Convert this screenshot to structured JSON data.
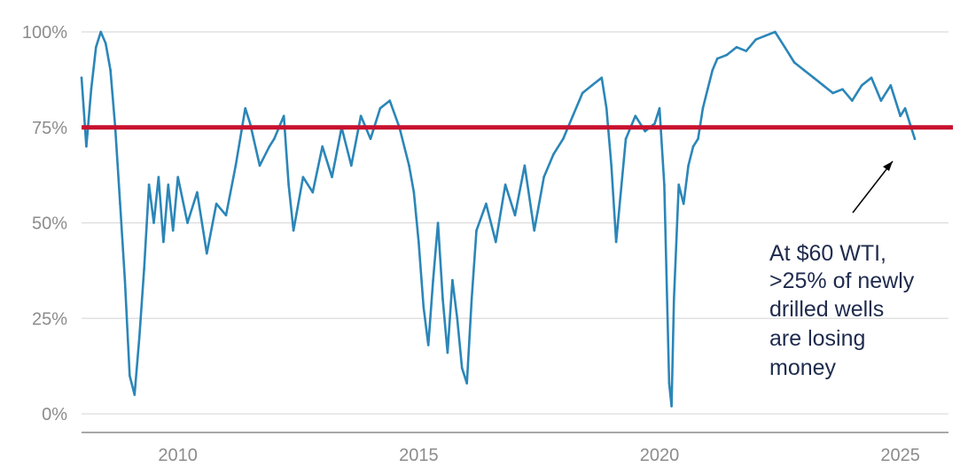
{
  "chart_data": {
    "type": "line",
    "title": "",
    "xlabel": "",
    "ylabel": "",
    "xlim": [
      2008.0,
      2026.0
    ],
    "ylim": [
      0,
      100
    ],
    "x_ticks": [
      {
        "value": 2010,
        "label": "2010"
      },
      {
        "value": 2015,
        "label": "2015"
      },
      {
        "value": 2020,
        "label": "2020"
      },
      {
        "value": 2025,
        "label": "2025"
      }
    ],
    "y_ticks": [
      {
        "value": 0,
        "label": "0%"
      },
      {
        "value": 25,
        "label": "25%"
      },
      {
        "value": 50,
        "label": "50%"
      },
      {
        "value": 75,
        "label": "75%"
      },
      {
        "value": 100,
        "label": "100%"
      }
    ],
    "grid": "horizontal",
    "legend": "none",
    "colors": {
      "series": "#2b86b8",
      "threshold": "#c8102e",
      "grid": "#dcdcdc",
      "axis": "#8c8c8c",
      "annotation": "#1f2b4d"
    },
    "reference_line": {
      "y": 75
    },
    "series": [
      {
        "x": [
          2008.0,
          2008.1,
          2008.2,
          2008.3,
          2008.4,
          2008.5,
          2008.6,
          2008.7,
          2008.8,
          2008.9,
          2009.0,
          2009.1,
          2009.2,
          2009.3,
          2009.4,
          2009.5,
          2009.6,
          2009.7,
          2009.8,
          2009.9,
          2010.0,
          2010.2,
          2010.4,
          2010.6,
          2010.8,
          2011.0,
          2011.2,
          2011.4,
          2011.5,
          2011.7,
          2011.9,
          2012.0,
          2012.2,
          2012.3,
          2012.4,
          2012.6,
          2012.8,
          2013.0,
          2013.2,
          2013.4,
          2013.6,
          2013.8,
          2014.0,
          2014.2,
          2014.4,
          2014.6,
          2014.8,
          2014.9,
          2015.0,
          2015.1,
          2015.2,
          2015.3,
          2015.4,
          2015.5,
          2015.6,
          2015.7,
          2015.8,
          2015.9,
          2016.0,
          2016.1,
          2016.2,
          2016.4,
          2016.6,
          2016.8,
          2017.0,
          2017.2,
          2017.4,
          2017.6,
          2017.8,
          2018.0,
          2018.2,
          2018.4,
          2018.6,
          2018.8,
          2018.9,
          2019.0,
          2019.1,
          2019.3,
          2019.5,
          2019.7,
          2019.9,
          2020.0,
          2020.1,
          2020.2,
          2020.25,
          2020.3,
          2020.4,
          2020.5,
          2020.6,
          2020.7,
          2020.8,
          2020.9,
          2021.0,
          2021.1,
          2021.2,
          2021.4,
          2021.6,
          2021.8,
          2022.0,
          2022.2,
          2022.4,
          2022.6,
          2022.8,
          2023.0,
          2023.2,
          2023.4,
          2023.6,
          2023.8,
          2024.0,
          2024.2,
          2024.4,
          2024.6,
          2024.8,
          2025.0,
          2025.1,
          2025.2,
          2025.3
        ],
        "y": [
          88,
          70,
          85,
          96,
          100,
          97,
          90,
          75,
          55,
          35,
          10,
          5,
          20,
          38,
          60,
          50,
          62,
          45,
          60,
          48,
          62,
          50,
          58,
          42,
          55,
          52,
          65,
          80,
          76,
          65,
          70,
          72,
          78,
          60,
          48,
          62,
          58,
          70,
          62,
          75,
          65,
          78,
          72,
          80,
          82,
          75,
          65,
          58,
          45,
          28,
          18,
          35,
          50,
          30,
          16,
          35,
          25,
          12,
          8,
          30,
          48,
          55,
          45,
          60,
          52,
          65,
          48,
          62,
          68,
          72,
          78,
          84,
          86,
          88,
          80,
          65,
          45,
          72,
          78,
          74,
          76,
          80,
          60,
          8,
          2,
          30,
          60,
          55,
          65,
          70,
          72,
          80,
          85,
          90,
          93,
          94,
          96,
          95,
          98,
          99,
          100,
          96,
          92,
          90,
          88,
          86,
          84,
          85,
          82,
          86,
          88,
          82,
          86,
          78,
          80,
          76,
          72
        ]
      }
    ],
    "annotation": {
      "lines": [
        "At $60 WTI,",
        ">25% of newly",
        "drilled wells",
        "are losing",
        "money"
      ]
    }
  }
}
